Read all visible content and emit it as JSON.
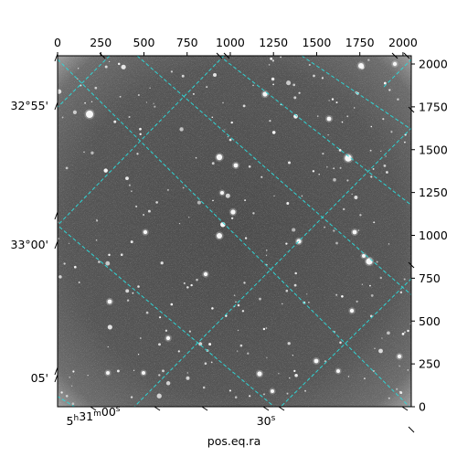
{
  "figure": {
    "x_axis_label": "pos.eq.ra",
    "top_ticks": [
      "0",
      "250",
      "500",
      "750",
      "1000",
      "1250",
      "1500",
      "1750",
      "2000"
    ],
    "right_ticks": [
      "0",
      "250",
      "500",
      "750",
      "1000",
      "1250",
      "1500",
      "1750",
      "2000"
    ],
    "dec_ticks": [
      "32°55'",
      "33°00'",
      "05'"
    ],
    "ra_ticks": [
      {
        "h": "5",
        "m": "31",
        "s": "00"
      },
      {
        "s": "30"
      }
    ],
    "ra_units": {
      "h": "h",
      "m": "m",
      "s": "s"
    },
    "grid_color": "#2fd4d4",
    "frame_color": "#000000"
  }
}
